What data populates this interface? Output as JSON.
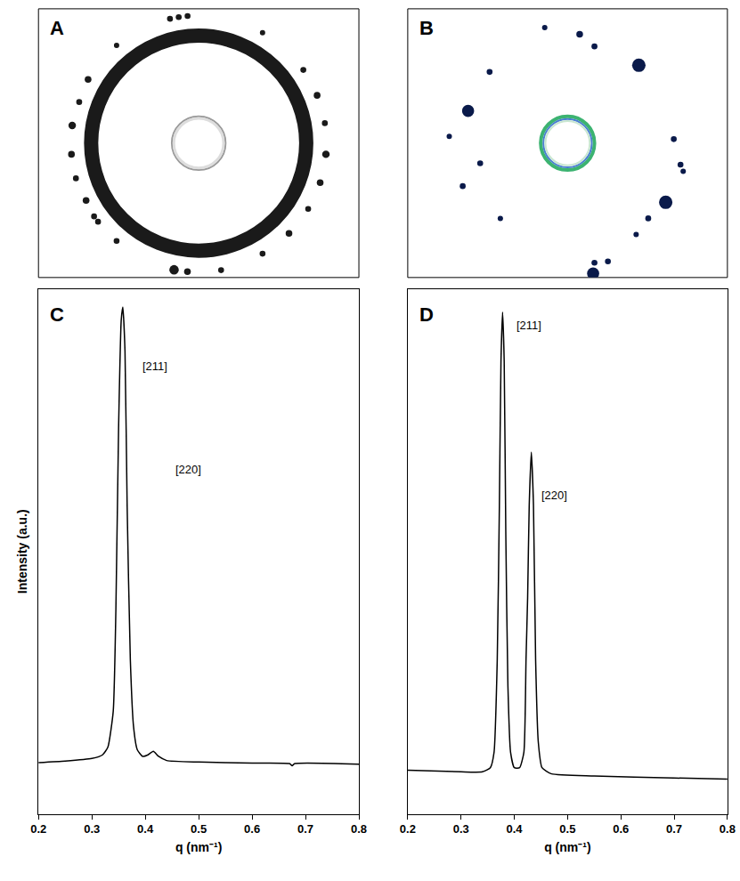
{
  "chart_data": [
    {
      "type": "diffraction_ring",
      "label": "A",
      "color": "#1a1a1a"
    },
    {
      "type": "diffraction_spots",
      "label": "B",
      "color": "#0a1a4a"
    },
    {
      "type": "line",
      "label": "C",
      "color": "#000000",
      "x": [
        0.2,
        0.25,
        0.3,
        0.32,
        0.33,
        0.34,
        0.345,
        0.35,
        0.355,
        0.358,
        0.362,
        0.366,
        0.372,
        0.378,
        0.385,
        0.395,
        0.405,
        0.415,
        0.425,
        0.44,
        0.5,
        0.6,
        0.67,
        0.675,
        0.68,
        0.8
      ],
      "values": [
        0.1,
        0.103,
        0.108,
        0.115,
        0.13,
        0.2,
        0.4,
        0.75,
        0.96,
        0.985,
        0.9,
        0.6,
        0.3,
        0.17,
        0.125,
        0.112,
        0.115,
        0.122,
        0.112,
        0.104,
        0.101,
        0.099,
        0.098,
        0.094,
        0.098,
        0.097
      ],
      "xlim": [
        0.2,
        0.8
      ],
      "xticks": [
        0.2,
        0.3,
        0.4,
        0.5,
        0.6,
        0.7,
        0.8
      ],
      "ylim": [
        0,
        1.02
      ],
      "tick_labels": "x",
      "xlabel": "q (nm⁻¹)",
      "ylabel": "Intensity (a.u.)",
      "annotations": [
        {
          "text": "[211]",
          "x": 0.392,
          "y": 0.87
        },
        {
          "text": "[220]",
          "x": 0.453,
          "y": 0.67
        }
      ]
    },
    {
      "type": "line",
      "label": "D",
      "color": "#000000",
      "x": [
        0.2,
        0.3,
        0.34,
        0.355,
        0.362,
        0.368,
        0.372,
        0.375,
        0.378,
        0.381,
        0.384,
        0.388,
        0.393,
        0.4,
        0.41,
        0.418,
        0.422,
        0.425,
        0.428,
        0.432,
        0.436,
        0.44,
        0.445,
        0.452,
        0.47,
        0.55,
        0.7,
        0.8
      ],
      "values": [
        0.085,
        0.082,
        0.082,
        0.09,
        0.12,
        0.3,
        0.6,
        0.88,
        0.975,
        0.88,
        0.55,
        0.25,
        0.12,
        0.09,
        0.09,
        0.12,
        0.3,
        0.42,
        0.6,
        0.703,
        0.6,
        0.3,
        0.14,
        0.09,
        0.078,
        0.074,
        0.07,
        0.068
      ],
      "xlim": [
        0.2,
        0.8
      ],
      "xticks": [
        0.2,
        0.3,
        0.4,
        0.5,
        0.6,
        0.7,
        0.8
      ],
      "ylim": [
        0,
        1.02
      ],
      "tick_labels": "x",
      "xlabel": "q (nm⁻¹)",
      "annotations": [
        {
          "text": "[211]",
          "x": 0.4,
          "y": 0.95
        },
        {
          "text": "[220]",
          "x": 0.447,
          "y": 0.62
        }
      ]
    }
  ]
}
